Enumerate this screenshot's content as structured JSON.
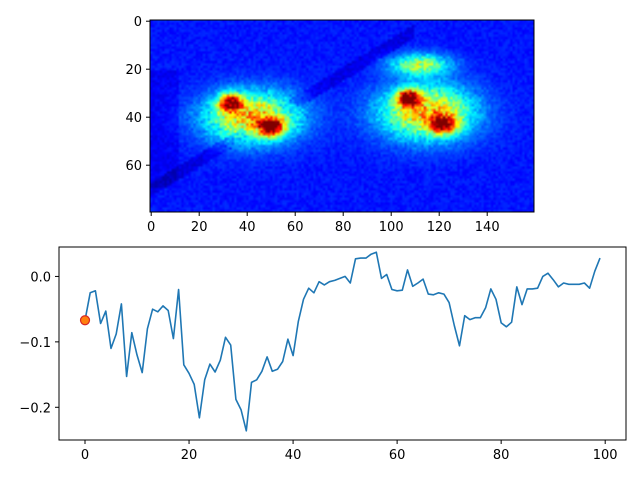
{
  "chart_data": [
    {
      "type": "heatmap",
      "colormap": "jet",
      "rows": 80,
      "cols": 160,
      "xticks": [
        "0",
        "20",
        "40",
        "60",
        "80",
        "100",
        "120",
        "140"
      ],
      "yticks": [
        "0",
        "20",
        "40",
        "60"
      ],
      "xlim": [
        0,
        160
      ],
      "ylim": [
        80,
        0
      ],
      "blobs": [
        {
          "cx": 42,
          "cy": 40,
          "rx": 22,
          "ry": 12,
          "peak": 0.7
        },
        {
          "cx": 33,
          "cy": 34,
          "rx": 5,
          "ry": 4,
          "peak": 0.9
        },
        {
          "cx": 50,
          "cy": 44,
          "rx": 6,
          "ry": 4,
          "peak": 0.95
        },
        {
          "cx": 115,
          "cy": 38,
          "rx": 22,
          "ry": 13,
          "peak": 0.7
        },
        {
          "cx": 107,
          "cy": 32,
          "rx": 5,
          "ry": 4,
          "peak": 0.95
        },
        {
          "cx": 122,
          "cy": 43,
          "rx": 6,
          "ry": 4,
          "peak": 0.85
        },
        {
          "cx": 112,
          "cy": 18,
          "rx": 14,
          "ry": 5,
          "peak": 0.5
        }
      ]
    },
    {
      "type": "line",
      "xticks": [
        "0",
        "20",
        "40",
        "60",
        "80",
        "100"
      ],
      "yticks": [
        "0.0",
        "−0.1",
        "−0.2"
      ],
      "xlim": [
        -5,
        104
      ],
      "ylim": [
        -0.25,
        0.045
      ],
      "line_color": "#1f77b4",
      "marker": {
        "x": 0,
        "y": -0.067,
        "face": "#ff7f0e",
        "edge": "#d62728"
      },
      "x": [
        0,
        1,
        2,
        3,
        4,
        5,
        6,
        7,
        8,
        9,
        10,
        11,
        12,
        13,
        14,
        15,
        16,
        17,
        18,
        19,
        20,
        21,
        22,
        23,
        24,
        25,
        26,
        27,
        28,
        29,
        30,
        31,
        32,
        33,
        34,
        35,
        36,
        37,
        38,
        39,
        40,
        41,
        42,
        43,
        44,
        45,
        46,
        47,
        48,
        49,
        50,
        51,
        52,
        53,
        54,
        55,
        56,
        57,
        58,
        59,
        60,
        61,
        62,
        63,
        64,
        65,
        66,
        67,
        68,
        69,
        70,
        71,
        72,
        73,
        74,
        75,
        76,
        77,
        78,
        79,
        80,
        81,
        82,
        83,
        84,
        85,
        86,
        87,
        88,
        89,
        90,
        91,
        92,
        93,
        94,
        95,
        96,
        97,
        98,
        99
      ],
      "y": [
        -0.067,
        -0.025,
        -0.022,
        -0.072,
        -0.053,
        -0.11,
        -0.088,
        -0.042,
        -0.153,
        -0.086,
        -0.12,
        -0.147,
        -0.08,
        -0.05,
        -0.054,
        -0.045,
        -0.052,
        -0.095,
        -0.02,
        -0.135,
        -0.148,
        -0.165,
        -0.216,
        -0.158,
        -0.134,
        -0.146,
        -0.128,
        -0.093,
        -0.105,
        -0.188,
        -0.204,
        -0.236,
        -0.162,
        -0.158,
        -0.145,
        -0.123,
        -0.145,
        -0.142,
        -0.13,
        -0.096,
        -0.121,
        -0.069,
        -0.035,
        -0.018,
        -0.025,
        -0.008,
        -0.013,
        -0.008,
        -0.006,
        -0.003,
        0.0,
        -0.01,
        0.027,
        0.028,
        0.028,
        0.034,
        0.037,
        -0.003,
        0.003,
        -0.02,
        -0.022,
        -0.021,
        0.01,
        -0.015,
        -0.01,
        -0.004,
        -0.027,
        -0.028,
        -0.025,
        -0.027,
        -0.04,
        -0.075,
        -0.106,
        -0.06,
        -0.066,
        -0.063,
        -0.063,
        -0.048,
        -0.019,
        -0.035,
        -0.071,
        -0.077,
        -0.07,
        -0.016,
        -0.043,
        -0.019,
        -0.019,
        -0.018,
        0.0,
        0.005,
        -0.005,
        -0.016,
        -0.01,
        -0.012,
        -0.012,
        -0.012,
        -0.01,
        -0.018,
        0.008,
        0.028
      ]
    }
  ]
}
